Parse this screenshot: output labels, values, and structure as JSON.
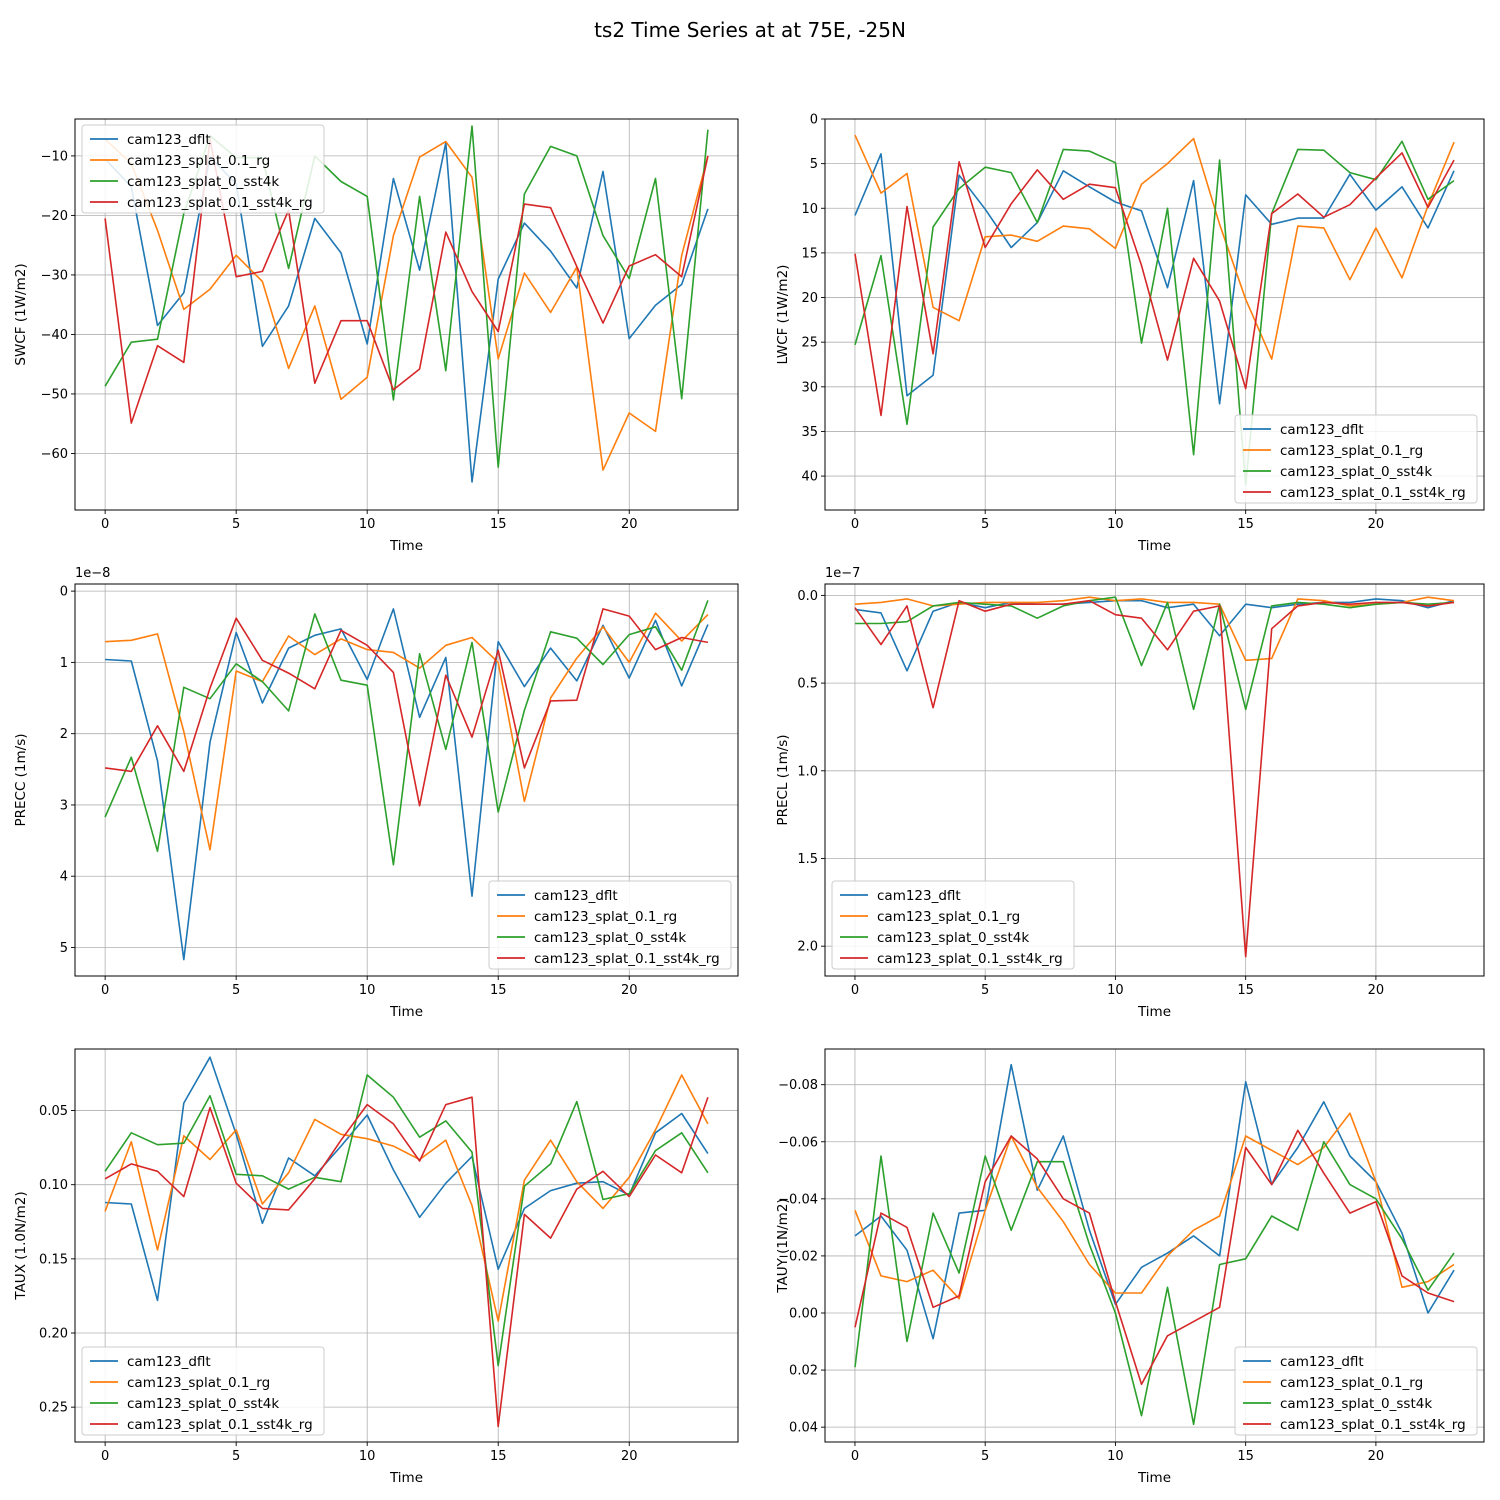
{
  "title": "ts2 Time Series at at 75E, -25N",
  "colors": [
    "#1f77b4",
    "#ff7f0e",
    "#2ca02c",
    "#d62728"
  ],
  "chart_data": [
    {
      "type": "line",
      "xlabel": "Time",
      "ylabel": "SWCF (1W/m2)",
      "xlim": [
        -1.15,
        24.15
      ],
      "ylim": [
        -3.8,
        -69.5
      ],
      "xticks": [
        0,
        5,
        10,
        15,
        20
      ],
      "yticks": [
        -10,
        -20,
        -30,
        -40,
        -50,
        -60
      ],
      "ytick_labels": [
        "−10",
        "−20",
        "−30",
        "−40",
        "−50",
        "−60"
      ],
      "offset_label": "",
      "grid": true,
      "legend_position": "upper-left",
      "x": [
        0,
        1,
        2,
        3,
        4,
        5,
        6,
        7,
        8,
        9,
        10,
        11,
        12,
        13,
        14,
        15,
        16,
        17,
        18,
        19,
        20,
        21,
        22,
        23
      ],
      "series": [
        {
          "name": "cam123_dflt",
          "values": [
            -10.5,
            -15.2,
            -38.5,
            -33.0,
            -10.2,
            -14.7,
            -42.0,
            -35.2,
            -20.5,
            -26.3,
            -41.6,
            -13.8,
            -29.2,
            -7.8,
            -64.8,
            -30.7,
            -21.3,
            -26.0,
            -32.2,
            -12.6,
            -40.7,
            -35.1,
            -31.6,
            -18.9
          ]
        },
        {
          "name": "cam123_splat_0.1_rg",
          "values": [
            -7.2,
            -11.3,
            -22.5,
            -35.8,
            -32.4,
            -26.7,
            -31.1,
            -45.7,
            -35.2,
            -50.9,
            -47.2,
            -23.4,
            -10.2,
            -7.6,
            -13.6,
            -44.1,
            -29.7,
            -36.3,
            -28.7,
            -62.8,
            -53.2,
            -56.3,
            -26.7,
            -10.0
          ]
        },
        {
          "name": "cam123_splat_0_sst4k",
          "values": [
            -48.7,
            -41.3,
            -40.8,
            -19.7,
            -6.6,
            -10.3,
            -10.3,
            -28.9,
            -10.0,
            -14.3,
            -16.8,
            -51.0,
            -16.8,
            -46.1,
            -5.0,
            -62.3,
            -16.4,
            -8.4,
            -10.0,
            -23.4,
            -30.6,
            -13.8,
            -50.8,
            -5.6
          ]
        },
        {
          "name": "cam123_splat_0.1_sst4k_rg",
          "values": [
            -20.5,
            -54.9,
            -41.9,
            -44.7,
            -7.2,
            -30.3,
            -29.4,
            -19.1,
            -48.2,
            -37.7,
            -37.7,
            -49.3,
            -45.8,
            -22.8,
            -32.8,
            -39.5,
            -18.1,
            -18.7,
            -28.6,
            -38.1,
            -28.5,
            -26.6,
            -30.3,
            -10.0
          ]
        }
      ]
    },
    {
      "type": "line",
      "xlabel": "Time",
      "ylabel": "LWCF (1W/m2)",
      "xlim": [
        -1.15,
        24.15
      ],
      "ylim": [
        0,
        43.8
      ],
      "xticks": [
        0,
        5,
        10,
        15,
        20
      ],
      "yticks": [
        0,
        5,
        10,
        15,
        20,
        25,
        30,
        35,
        40
      ],
      "ytick_labels": [
        "0",
        "5",
        "10",
        "15",
        "20",
        "25",
        "30",
        "35",
        "40"
      ],
      "offset_label": "",
      "grid": true,
      "legend_position": "lower-right",
      "x": [
        0,
        1,
        2,
        3,
        4,
        5,
        6,
        7,
        8,
        9,
        10,
        11,
        12,
        13,
        14,
        15,
        16,
        17,
        18,
        19,
        20,
        21,
        22,
        23
      ],
      "series": [
        {
          "name": "cam123_dflt",
          "values": [
            10.8,
            3.9,
            31.0,
            28.7,
            6.3,
            10.1,
            14.4,
            11.6,
            5.8,
            7.6,
            9.3,
            10.3,
            18.9,
            6.9,
            31.9,
            8.5,
            11.8,
            11.1,
            11.1,
            6.2,
            10.2,
            7.6,
            12.2,
            5.8
          ]
        },
        {
          "name": "cam123_splat_0.1_rg",
          "values": [
            1.8,
            8.3,
            6.1,
            21.1,
            22.6,
            13.2,
            13.0,
            13.7,
            12.0,
            12.3,
            14.5,
            7.3,
            5.0,
            2.2,
            11.8,
            20.2,
            26.9,
            12.0,
            12.2,
            18.0,
            12.2,
            17.8,
            9.7,
            2.6
          ]
        },
        {
          "name": "cam123_splat_0_sst4k",
          "values": [
            25.3,
            15.3,
            34.2,
            12.1,
            7.8,
            5.4,
            6.0,
            11.6,
            3.4,
            3.6,
            4.9,
            25.1,
            10.0,
            37.6,
            4.6,
            41.0,
            10.6,
            3.4,
            3.5,
            6.0,
            6.8,
            2.5,
            9.0,
            6.9
          ]
        },
        {
          "name": "cam123_splat_0.1_sst4k_rg",
          "values": [
            15.1,
            33.2,
            9.8,
            26.3,
            4.8,
            14.4,
            9.5,
            5.7,
            9.0,
            7.3,
            7.7,
            16.4,
            27.0,
            15.6,
            20.4,
            30.2,
            10.6,
            8.4,
            11.0,
            9.6,
            6.6,
            3.8,
            9.9,
            4.6
          ]
        }
      ]
    },
    {
      "type": "line",
      "xlabel": "Time",
      "ylabel": "PRECC (1m/s)",
      "xlim": [
        -1.15,
        24.15
      ],
      "ylim": [
        -0.1,
        5.4
      ],
      "xticks": [
        0,
        5,
        10,
        15,
        20
      ],
      "yticks": [
        0,
        1,
        2,
        3,
        4,
        5
      ],
      "ytick_labels": [
        "0",
        "1",
        "2",
        "3",
        "4",
        "5"
      ],
      "offset_label": "1e−8",
      "grid": true,
      "legend_position": "lower-right",
      "x": [
        0,
        1,
        2,
        3,
        4,
        5,
        6,
        7,
        8,
        9,
        10,
        11,
        12,
        13,
        14,
        15,
        16,
        17,
        18,
        19,
        20,
        21,
        22,
        23
      ],
      "series": [
        {
          "name": "cam123_dflt",
          "values": [
            0.96,
            0.98,
            2.38,
            5.17,
            2.12,
            0.58,
            1.57,
            0.8,
            0.62,
            0.53,
            1.24,
            0.25,
            1.77,
            0.93,
            4.28,
            0.71,
            1.34,
            0.8,
            1.26,
            0.48,
            1.22,
            0.41,
            1.33,
            0.47
          ]
        },
        {
          "name": "cam123_splat_0.1_rg",
          "values": [
            0.71,
            0.69,
            0.6,
            1.97,
            3.63,
            1.12,
            1.27,
            0.63,
            0.89,
            0.67,
            0.82,
            0.86,
            1.08,
            0.76,
            0.65,
            1.0,
            2.95,
            1.5,
            0.94,
            0.5,
            1.0,
            0.31,
            0.7,
            0.33
          ]
        },
        {
          "name": "cam123_splat_0_sst4k",
          "values": [
            3.17,
            2.33,
            3.65,
            1.35,
            1.51,
            1.02,
            1.27,
            1.68,
            0.32,
            1.25,
            1.32,
            3.84,
            0.88,
            2.22,
            0.72,
            3.1,
            1.67,
            0.57,
            0.66,
            1.03,
            0.61,
            0.5,
            1.11,
            0.13
          ]
        },
        {
          "name": "cam123_splat_0.1_sst4k_rg",
          "values": [
            2.48,
            2.53,
            1.89,
            2.53,
            1.36,
            0.38,
            0.97,
            1.15,
            1.37,
            0.55,
            0.76,
            1.14,
            3.01,
            1.18,
            2.05,
            0.83,
            2.48,
            1.54,
            1.53,
            0.25,
            0.35,
            0.82,
            0.65,
            0.72
          ]
        }
      ]
    },
    {
      "type": "line",
      "xlabel": "Time",
      "ylabel": "PRECL (1m/s)",
      "xlim": [
        -1.15,
        24.15
      ],
      "ylim": [
        -0.065,
        2.17
      ],
      "xticks": [
        0,
        5,
        10,
        15,
        20
      ],
      "yticks": [
        0,
        0.5,
        1.0,
        1.5,
        2.0
      ],
      "ytick_labels": [
        "0.0",
        "0.5",
        "1.0",
        "1.5",
        "2.0"
      ],
      "offset_label": "1e−7",
      "grid": true,
      "legend_position": "lower-left",
      "x": [
        0,
        1,
        2,
        3,
        4,
        5,
        6,
        7,
        8,
        9,
        10,
        11,
        12,
        13,
        14,
        15,
        16,
        17,
        18,
        19,
        20,
        21,
        22,
        23
      ],
      "series": [
        {
          "name": "cam123_dflt",
          "values": [
            0.08,
            0.1,
            0.43,
            0.09,
            0.04,
            0.07,
            0.04,
            0.05,
            0.05,
            0.04,
            0.03,
            0.03,
            0.07,
            0.05,
            0.23,
            0.05,
            0.07,
            0.05,
            0.04,
            0.04,
            0.02,
            0.03,
            0.07,
            0.03
          ]
        },
        {
          "name": "cam123_splat_0.1_rg",
          "values": [
            0.05,
            0.04,
            0.02,
            0.06,
            0.05,
            0.04,
            0.04,
            0.04,
            0.03,
            0.01,
            0.03,
            0.02,
            0.04,
            0.04,
            0.05,
            0.37,
            0.36,
            0.02,
            0.03,
            0.06,
            0.05,
            0.04,
            0.01,
            0.03
          ]
        },
        {
          "name": "cam123_splat_0_sst4k",
          "values": [
            0.16,
            0.16,
            0.15,
            0.06,
            0.04,
            0.05,
            0.06,
            0.13,
            0.06,
            0.03,
            0.01,
            0.4,
            0.04,
            0.65,
            0.05,
            0.65,
            0.06,
            0.04,
            0.05,
            0.07,
            0.05,
            0.04,
            0.05,
            0.04
          ]
        },
        {
          "name": "cam123_splat_0.1_sst4k_rg",
          "values": [
            0.07,
            0.28,
            0.06,
            0.64,
            0.03,
            0.09,
            0.05,
            0.05,
            0.05,
            0.03,
            0.11,
            0.13,
            0.31,
            0.09,
            0.06,
            2.06,
            0.19,
            0.06,
            0.04,
            0.05,
            0.04,
            0.04,
            0.06,
            0.04
          ]
        }
      ]
    },
    {
      "type": "line",
      "xlabel": "Time",
      "ylabel": "TAUX (1.0N/m2)",
      "xlim": [
        -1.15,
        24.15
      ],
      "ylim": [
        0.0085,
        0.2735
      ],
      "xticks": [
        0,
        5,
        10,
        15,
        20,
        25
      ],
      "yticks": [
        0.05,
        0.1,
        0.15,
        0.2,
        0.25
      ],
      "ytick_labels": [
        "0.05",
        "0.10",
        "0.15",
        "0.20",
        "0.25"
      ],
      "offset_label": "",
      "grid": true,
      "legend_position": "lower-left",
      "x": [
        0,
        1,
        2,
        3,
        4,
        5,
        6,
        7,
        8,
        9,
        10,
        11,
        12,
        13,
        14,
        15,
        16,
        17,
        18,
        19,
        20,
        21,
        22,
        23
      ],
      "series": [
        {
          "name": "cam123_dflt",
          "values": [
            0.112,
            0.113,
            0.178,
            0.045,
            0.014,
            0.066,
            0.126,
            0.082,
            0.094,
            0.074,
            0.053,
            0.09,
            0.122,
            0.099,
            0.081,
            0.157,
            0.116,
            0.104,
            0.099,
            0.098,
            0.107,
            0.065,
            0.052,
            0.079
          ]
        },
        {
          "name": "cam123_splat_0.1_rg",
          "values": [
            0.118,
            0.071,
            0.144,
            0.067,
            0.083,
            0.063,
            0.113,
            0.092,
            0.056,
            0.066,
            0.069,
            0.074,
            0.083,
            0.07,
            0.114,
            0.192,
            0.097,
            0.07,
            0.098,
            0.116,
            0.095,
            0.063,
            0.026,
            0.059
          ]
        },
        {
          "name": "cam123_splat_0_sst4k",
          "values": [
            0.091,
            0.065,
            0.073,
            0.072,
            0.04,
            0.093,
            0.094,
            0.103,
            0.095,
            0.098,
            0.026,
            0.041,
            0.068,
            0.057,
            0.078,
            0.222,
            0.101,
            0.086,
            0.044,
            0.11,
            0.106,
            0.077,
            0.065,
            0.092
          ]
        },
        {
          "name": "cam123_splat_0.1_sst4k_rg",
          "values": [
            0.096,
            0.086,
            0.091,
            0.108,
            0.048,
            0.099,
            0.116,
            0.117,
            0.096,
            0.07,
            0.046,
            0.059,
            0.084,
            0.046,
            0.041,
            0.263,
            0.12,
            0.136,
            0.103,
            0.091,
            0.108,
            0.08,
            0.092,
            0.041
          ]
        }
      ]
    },
    {
      "type": "line",
      "xlabel": "Time",
      "ylabel": "TAUY (1N/m2)",
      "xlim": [
        -1.15,
        24.15
      ],
      "ylim": [
        -0.0925,
        0.0452
      ],
      "xticks": [
        0,
        5,
        10,
        15,
        20
      ],
      "yticks": [
        -0.08,
        -0.06,
        -0.04,
        -0.02,
        0.0,
        0.02,
        0.04
      ],
      "ytick_labels": [
        "−0.08",
        "−0.06",
        "−0.04",
        "−0.02",
        "0.00",
        "0.02",
        "0.04"
      ],
      "offset_label": "",
      "grid": true,
      "legend_position": "lower-right",
      "x": [
        0,
        1,
        2,
        3,
        4,
        5,
        6,
        7,
        8,
        9,
        10,
        11,
        12,
        13,
        14,
        15,
        16,
        17,
        18,
        19,
        20,
        21,
        22,
        23
      ],
      "series": [
        {
          "name": "cam123_dflt",
          "values": [
            -0.027,
            -0.034,
            -0.022,
            0.009,
            -0.035,
            -0.036,
            -0.087,
            -0.043,
            -0.062,
            -0.029,
            -0.003,
            -0.016,
            -0.021,
            -0.027,
            -0.02,
            -0.081,
            -0.045,
            -0.058,
            -0.074,
            -0.055,
            -0.046,
            -0.028,
            0.0,
            -0.015
          ]
        },
        {
          "name": "cam123_splat_0.1_rg",
          "values": [
            -0.036,
            -0.013,
            -0.011,
            -0.015,
            -0.005,
            -0.036,
            -0.062,
            -0.044,
            -0.032,
            -0.017,
            -0.007,
            -0.007,
            -0.02,
            -0.029,
            -0.034,
            -0.062,
            -0.057,
            -0.052,
            -0.058,
            -0.07,
            -0.046,
            -0.009,
            -0.011,
            -0.017
          ]
        },
        {
          "name": "cam123_splat_0_sst4k",
          "values": [
            0.019,
            -0.055,
            0.01,
            -0.035,
            -0.014,
            -0.055,
            -0.029,
            -0.053,
            -0.053,
            -0.024,
            0.0,
            0.036,
            -0.009,
            0.039,
            -0.017,
            -0.019,
            -0.034,
            -0.029,
            -0.06,
            -0.045,
            -0.04,
            -0.026,
            -0.008,
            -0.021
          ]
        },
        {
          "name": "cam123_splat_0.1_sst4k_rg",
          "values": [
            0.005,
            -0.035,
            -0.03,
            -0.002,
            -0.006,
            -0.046,
            -0.062,
            -0.054,
            -0.04,
            -0.035,
            -0.004,
            0.025,
            0.008,
            0.003,
            -0.002,
            -0.058,
            -0.045,
            -0.064,
            -0.049,
            -0.035,
            -0.039,
            -0.013,
            -0.007,
            -0.004
          ]
        }
      ]
    }
  ]
}
